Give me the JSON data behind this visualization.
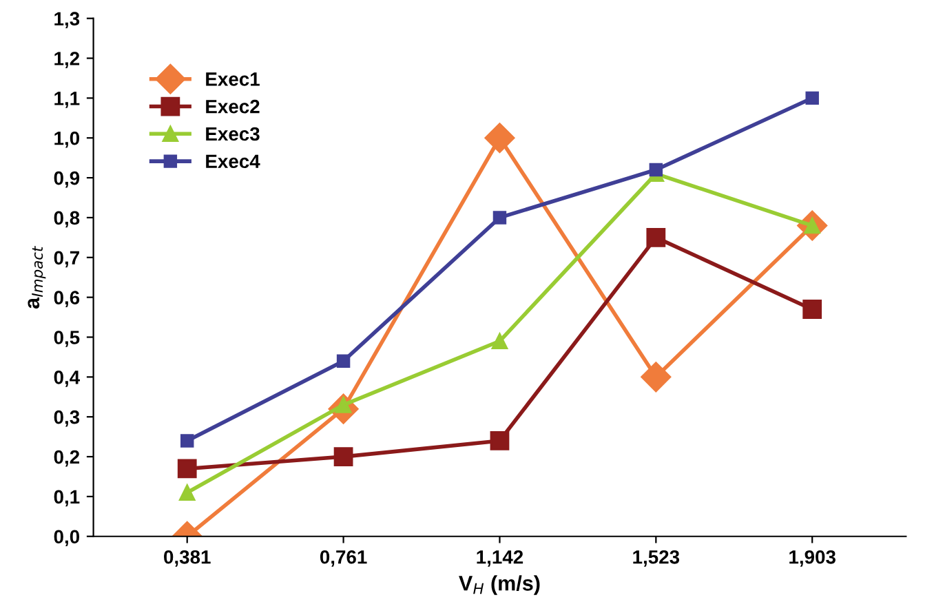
{
  "chart_data": {
    "type": "line",
    "xlabel": "V$_{H}$ (m/s)",
    "ylabel": "a$_{Impact}$",
    "categories": [
      "0,381",
      "0,761",
      "1,142",
      "1,523",
      "1,903"
    ],
    "series": [
      {
        "name": "Exec1",
        "color": "#f07c3b",
        "marker": "diamond",
        "values": [
          0.0,
          0.32,
          1.0,
          0.4,
          0.78
        ]
      },
      {
        "name": "Exec2",
        "color": "#8b1a1a",
        "marker": "square",
        "values": [
          0.17,
          0.2,
          0.24,
          0.75,
          0.57
        ]
      },
      {
        "name": "Exec3",
        "color": "#99cc33",
        "marker": "triangle",
        "values": [
          0.11,
          0.33,
          0.49,
          0.91,
          0.78
        ]
      },
      {
        "name": "Exec4",
        "color": "#3f3f96",
        "marker": "square",
        "values": [
          0.24,
          0.44,
          0.8,
          0.92,
          1.1
        ]
      }
    ],
    "ylim": [
      0,
      1.3
    ],
    "yticks": [
      {
        "value": 0,
        "label": "0,0"
      },
      {
        "value": 0.1,
        "label": "0,1"
      },
      {
        "value": 0.2,
        "label": "0,2"
      },
      {
        "value": 0.3,
        "label": "0,3"
      },
      {
        "value": 0.4,
        "label": "0,4"
      },
      {
        "value": 0.5,
        "label": "0,5"
      },
      {
        "value": 0.6,
        "label": "0,6"
      },
      {
        "value": 0.7,
        "label": "0,7"
      },
      {
        "value": 0.8,
        "label": "0,8"
      },
      {
        "value": 0.9,
        "label": "0,9"
      },
      {
        "value": 1.0,
        "label": "1,0"
      },
      {
        "value": 1.1,
        "label": "1,1"
      },
      {
        "value": 1.2,
        "label": "1,2"
      },
      {
        "value": 1.3,
        "label": "1,3"
      }
    ],
    "grid": false,
    "legend": "top left",
    "line_style": "solid"
  }
}
